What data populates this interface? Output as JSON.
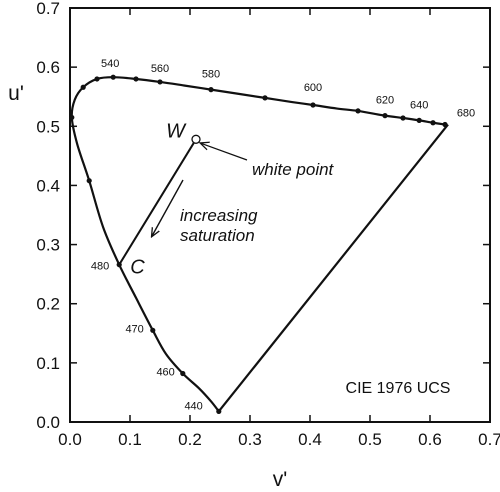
{
  "chart_data": {
    "type": "line",
    "xlabel": "v'",
    "ylabel": "u'",
    "xlim": [
      0.0,
      0.7
    ],
    "ylim": [
      0.0,
      0.7
    ],
    "xticks": [
      "0.0",
      "0.1",
      "0.2",
      "0.3",
      "0.4",
      "0.5",
      "0.6",
      "0.7"
    ],
    "yticks": [
      "0.0",
      "0.1",
      "0.2",
      "0.3",
      "0.4",
      "0.5",
      "0.6",
      "0.7"
    ],
    "grid": false,
    "locus": [
      {
        "x": 0.248,
        "y": 0.018
      },
      {
        "x": 0.235,
        "y": 0.035
      },
      {
        "x": 0.215,
        "y": 0.057
      },
      {
        "x": 0.188,
        "y": 0.082
      },
      {
        "x": 0.16,
        "y": 0.115
      },
      {
        "x": 0.138,
        "y": 0.155
      },
      {
        "x": 0.11,
        "y": 0.21
      },
      {
        "x": 0.082,
        "y": 0.266
      },
      {
        "x": 0.055,
        "y": 0.33
      },
      {
        "x": 0.032,
        "y": 0.408
      },
      {
        "x": 0.012,
        "y": 0.47
      },
      {
        "x": 0.003,
        "y": 0.515
      },
      {
        "x": 0.008,
        "y": 0.545
      },
      {
        "x": 0.022,
        "y": 0.566
      },
      {
        "x": 0.045,
        "y": 0.58
      },
      {
        "x": 0.072,
        "y": 0.583
      },
      {
        "x": 0.11,
        "y": 0.58
      },
      {
        "x": 0.15,
        "y": 0.575
      },
      {
        "x": 0.19,
        "y": 0.569
      },
      {
        "x": 0.235,
        "y": 0.562
      },
      {
        "x": 0.28,
        "y": 0.555
      },
      {
        "x": 0.325,
        "y": 0.548
      },
      {
        "x": 0.37,
        "y": 0.541
      },
      {
        "x": 0.405,
        "y": 0.536
      },
      {
        "x": 0.445,
        "y": 0.53
      },
      {
        "x": 0.48,
        "y": 0.526
      },
      {
        "x": 0.525,
        "y": 0.518
      },
      {
        "x": 0.555,
        "y": 0.514
      },
      {
        "x": 0.582,
        "y": 0.51
      },
      {
        "x": 0.605,
        "y": 0.506
      },
      {
        "x": 0.625,
        "y": 0.503
      }
    ],
    "locus_points": [
      {
        "x": 0.248,
        "y": 0.018
      },
      {
        "x": 0.188,
        "y": 0.082
      },
      {
        "x": 0.138,
        "y": 0.155
      },
      {
        "x": 0.082,
        "y": 0.266
      },
      {
        "x": 0.032,
        "y": 0.408
      },
      {
        "x": 0.003,
        "y": 0.515
      },
      {
        "x": 0.022,
        "y": 0.566
      },
      {
        "x": 0.045,
        "y": 0.58
      },
      {
        "x": 0.072,
        "y": 0.583
      },
      {
        "x": 0.11,
        "y": 0.58
      },
      {
        "x": 0.15,
        "y": 0.575
      },
      {
        "x": 0.235,
        "y": 0.562
      },
      {
        "x": 0.325,
        "y": 0.548
      },
      {
        "x": 0.405,
        "y": 0.536
      },
      {
        "x": 0.48,
        "y": 0.526
      },
      {
        "x": 0.525,
        "y": 0.518
      },
      {
        "x": 0.555,
        "y": 0.514
      },
      {
        "x": 0.582,
        "y": 0.51
      },
      {
        "x": 0.605,
        "y": 0.506
      },
      {
        "x": 0.625,
        "y": 0.503
      }
    ],
    "purple_line": [
      {
        "x": 0.248,
        "y": 0.018
      },
      {
        "x": 0.63,
        "y": 0.503
      }
    ],
    "wavelength_labels": [
      {
        "text": "440",
        "x": 0.248,
        "y": 0.018
      },
      {
        "text": "460",
        "x": 0.188,
        "y": 0.082
      },
      {
        "text": "470",
        "x": 0.138,
        "y": 0.155
      },
      {
        "text": "480",
        "x": 0.082,
        "y": 0.266
      },
      {
        "text": "540",
        "x": 0.072,
        "y": 0.583
      },
      {
        "text": "560",
        "x": 0.15,
        "y": 0.575
      },
      {
        "text": "580",
        "x": 0.235,
        "y": 0.562
      },
      {
        "text": "600",
        "x": 0.405,
        "y": 0.536
      },
      {
        "text": "620",
        "x": 0.525,
        "y": 0.518
      },
      {
        "text": "640",
        "x": 0.582,
        "y": 0.51
      },
      {
        "text": "680",
        "x": 0.63,
        "y": 0.503
      }
    ],
    "white_point": {
      "x": 0.21,
      "y": 0.478,
      "letter": "W",
      "annotation": "white point"
    },
    "saturation_point": {
      "x": 0.082,
      "y": 0.266,
      "letter": "C"
    },
    "arrow_annotation": "increasing saturation",
    "arrow_annotation_lines": [
      "increasing",
      "saturation"
    ],
    "caption": "CIE 1976 UCS"
  }
}
